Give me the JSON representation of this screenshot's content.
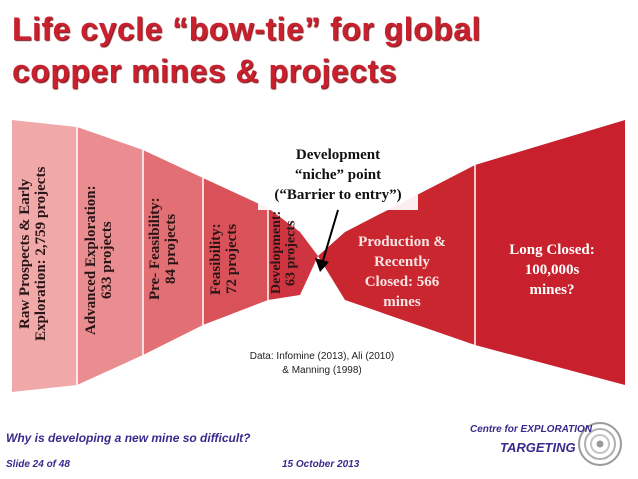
{
  "slide": {
    "title_line1": "Life cycle “bow-tie” for global",
    "title_line2": "copper mines & projects"
  },
  "stages": [
    {
      "label": "Raw Prospects & Early Exploration: 2,759 projects",
      "color": "#f0a8a8"
    },
    {
      "label": "Advanced Exploration: 633 projects",
      "color": "#ea8d90"
    },
    {
      "label": "Pre- Feasibility: 84 projects",
      "color": "#e26f74"
    },
    {
      "label": "Feasibility: 72 projects",
      "color": "#d9525a"
    },
    {
      "label": "Development: 63 projects",
      "color": "#cf3540"
    },
    {
      "label": "Production & Recently Closed: 566 mines",
      "color": "#c9262f"
    },
    {
      "label": "Long Closed: 100,000s mines?",
      "color": "#c8202d"
    }
  ],
  "niche_annotation": "Development\n“niche” point\n(“Barrier to entry”)",
  "production_label": "Production &\nRecently\nClosed: 566\nmines",
  "long_closed_label": "Long Closed:\n100,000s\nmines?",
  "source_note": "Data: Infomine (2013), Ali (2010)\n& Manning (1998)",
  "footer": {
    "question": "Why is developing a new mine so difficult?",
    "slide_number": "Slide 24 of 48",
    "date": "15 October 2013"
  },
  "logo": {
    "line1": "Centre for EXPLORATION",
    "line2": "TARGETING"
  },
  "colors": {
    "title_red": "#c8202d",
    "footer_purple": "#3a2a8c"
  }
}
